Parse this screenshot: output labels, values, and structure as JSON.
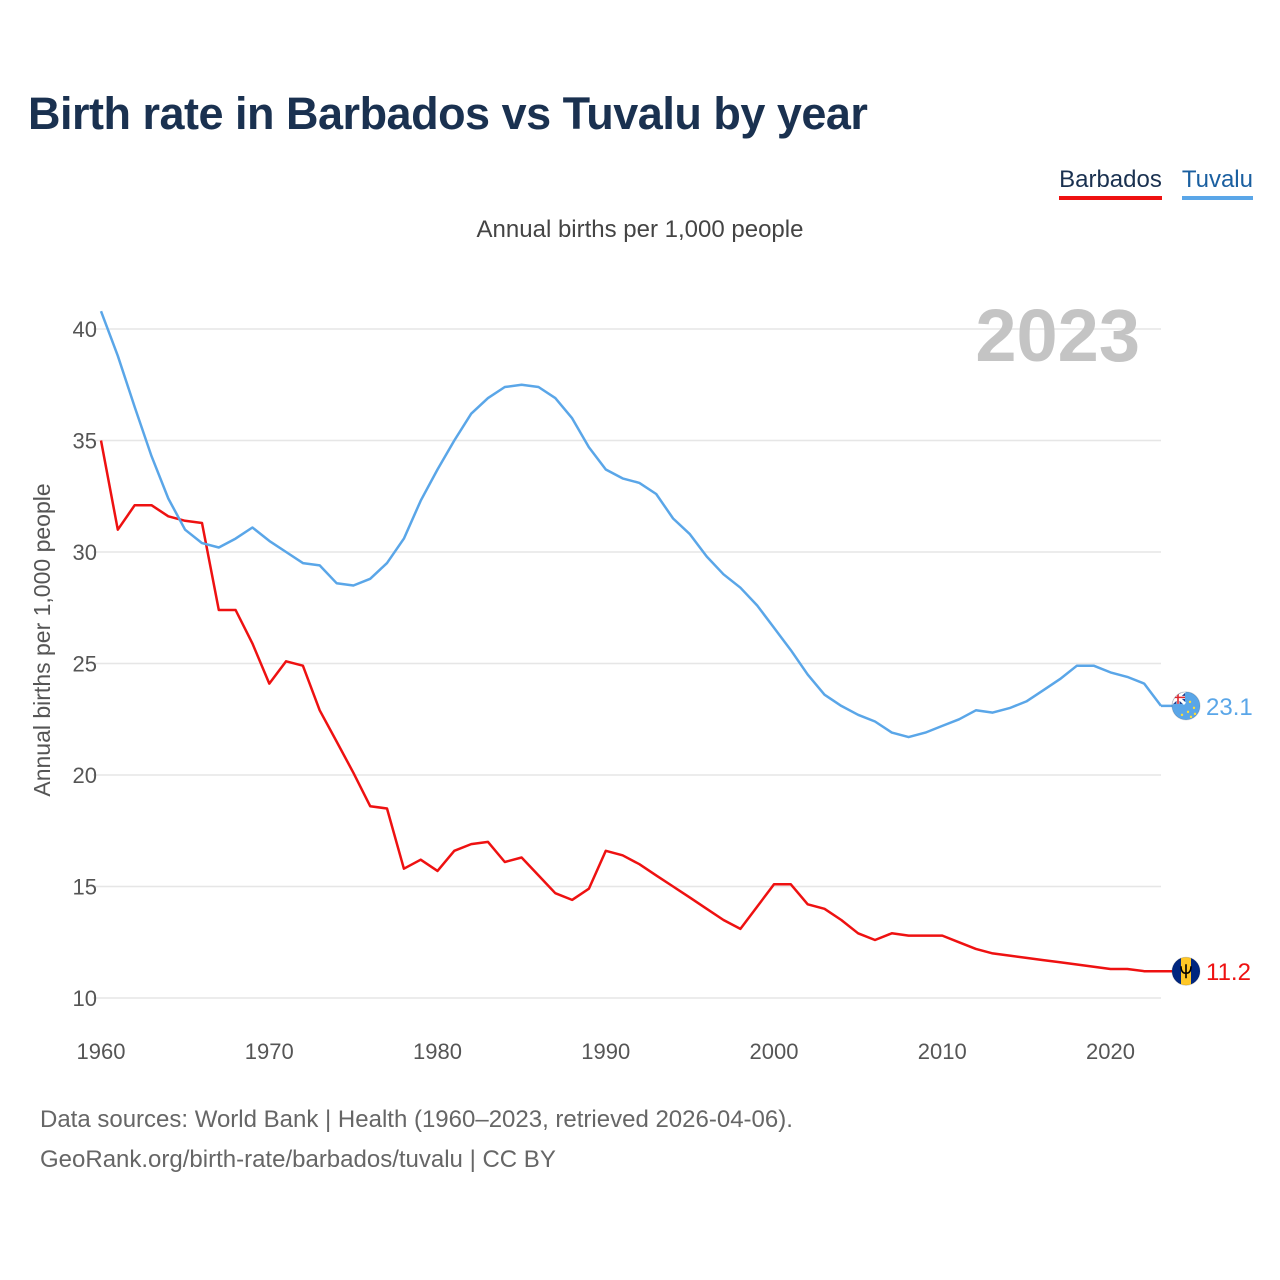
{
  "title": "Birth rate in Barbados vs Tuvalu by year",
  "legend": {
    "barbados": "Barbados",
    "tuvalu": "Tuvalu"
  },
  "subtitle": "Annual births per 1,000 people",
  "footer": {
    "line1": "Data sources: World Bank | Health (1960–2023, retrieved 2026-04-06).",
    "line2": "GeoRank.org/birth-rate/barbados/tuvalu | CC BY"
  },
  "colors": {
    "barbados": "#ee1111",
    "tuvalu": "#5aa6e8",
    "grid": "#e6e6e6"
  },
  "chart_data": {
    "type": "line",
    "title": "Birth rate in Barbados vs Tuvalu by year",
    "subtitle": "Annual births per 1,000 people",
    "xlabel": "",
    "ylabel": "Annual births per 1,000 people",
    "xlim": [
      1960,
      2023
    ],
    "ylim": [
      10,
      41
    ],
    "xticks": [
      1960,
      1970,
      1980,
      1990,
      2000,
      2010,
      2020
    ],
    "yticks": [
      10,
      15,
      20,
      25,
      30,
      35,
      40
    ],
    "year_label": "2023",
    "grid": true,
    "legend_position": "top-right",
    "series": [
      {
        "name": "Barbados",
        "color": "#ee1111",
        "end_label": "11.2",
        "x": [
          1960,
          1961,
          1962,
          1963,
          1964,
          1965,
          1966,
          1967,
          1968,
          1969,
          1970,
          1971,
          1972,
          1973,
          1974,
          1975,
          1976,
          1977,
          1978,
          1979,
          1980,
          1981,
          1982,
          1983,
          1984,
          1985,
          1986,
          1987,
          1988,
          1989,
          1990,
          1991,
          1992,
          1993,
          1994,
          1995,
          1996,
          1997,
          1998,
          1999,
          2000,
          2001,
          2002,
          2003,
          2004,
          2005,
          2006,
          2007,
          2008,
          2009,
          2010,
          2011,
          2012,
          2013,
          2014,
          2015,
          2016,
          2017,
          2018,
          2019,
          2020,
          2021,
          2022,
          2023
        ],
        "values": [
          35.0,
          31.0,
          32.1,
          32.1,
          31.6,
          31.4,
          31.3,
          27.4,
          27.4,
          25.9,
          24.1,
          25.1,
          24.9,
          22.9,
          21.5,
          20.1,
          18.6,
          18.5,
          15.8,
          16.2,
          15.7,
          16.6,
          16.9,
          17.0,
          16.1,
          16.3,
          15.5,
          14.7,
          14.4,
          14.9,
          16.6,
          16.4,
          16.0,
          15.5,
          15.0,
          14.5,
          14.0,
          13.5,
          13.1,
          14.1,
          15.1,
          15.1,
          14.2,
          14.0,
          13.5,
          12.9,
          12.6,
          12.9,
          12.8,
          12.8,
          12.8,
          12.5,
          12.2,
          12.0,
          11.9,
          11.8,
          11.7,
          11.6,
          11.5,
          11.4,
          11.3,
          11.3,
          11.2,
          11.2
        ]
      },
      {
        "name": "Tuvalu",
        "color": "#5aa6e8",
        "end_label": "23.1",
        "x": [
          1960,
          1961,
          1962,
          1963,
          1964,
          1965,
          1966,
          1967,
          1968,
          1969,
          1970,
          1971,
          1972,
          1973,
          1974,
          1975,
          1976,
          1977,
          1978,
          1979,
          1980,
          1981,
          1982,
          1983,
          1984,
          1985,
          1986,
          1987,
          1988,
          1989,
          1990,
          1991,
          1992,
          1993,
          1994,
          1995,
          1996,
          1997,
          1998,
          1999,
          2000,
          2001,
          2002,
          2003,
          2004,
          2005,
          2006,
          2007,
          2008,
          2009,
          2010,
          2011,
          2012,
          2013,
          2014,
          2015,
          2016,
          2017,
          2018,
          2019,
          2020,
          2021,
          2022,
          2023
        ],
        "values": [
          40.8,
          38.8,
          36.5,
          34.3,
          32.4,
          31.0,
          30.4,
          30.2,
          30.6,
          31.1,
          30.5,
          30.0,
          29.5,
          29.4,
          28.6,
          28.5,
          28.8,
          29.5,
          30.6,
          32.3,
          33.7,
          35.0,
          36.2,
          36.9,
          37.4,
          37.5,
          37.4,
          36.9,
          36.0,
          34.7,
          33.7,
          33.3,
          33.1,
          32.6,
          31.5,
          30.8,
          29.8,
          29.0,
          28.4,
          27.6,
          26.6,
          25.6,
          24.5,
          23.6,
          23.1,
          22.7,
          22.4,
          21.9,
          21.7,
          21.9,
          22.2,
          22.5,
          22.9,
          22.8,
          23.0,
          23.3,
          23.8,
          24.3,
          24.9,
          24.9,
          24.6,
          24.4,
          24.1,
          23.1
        ]
      }
    ]
  }
}
